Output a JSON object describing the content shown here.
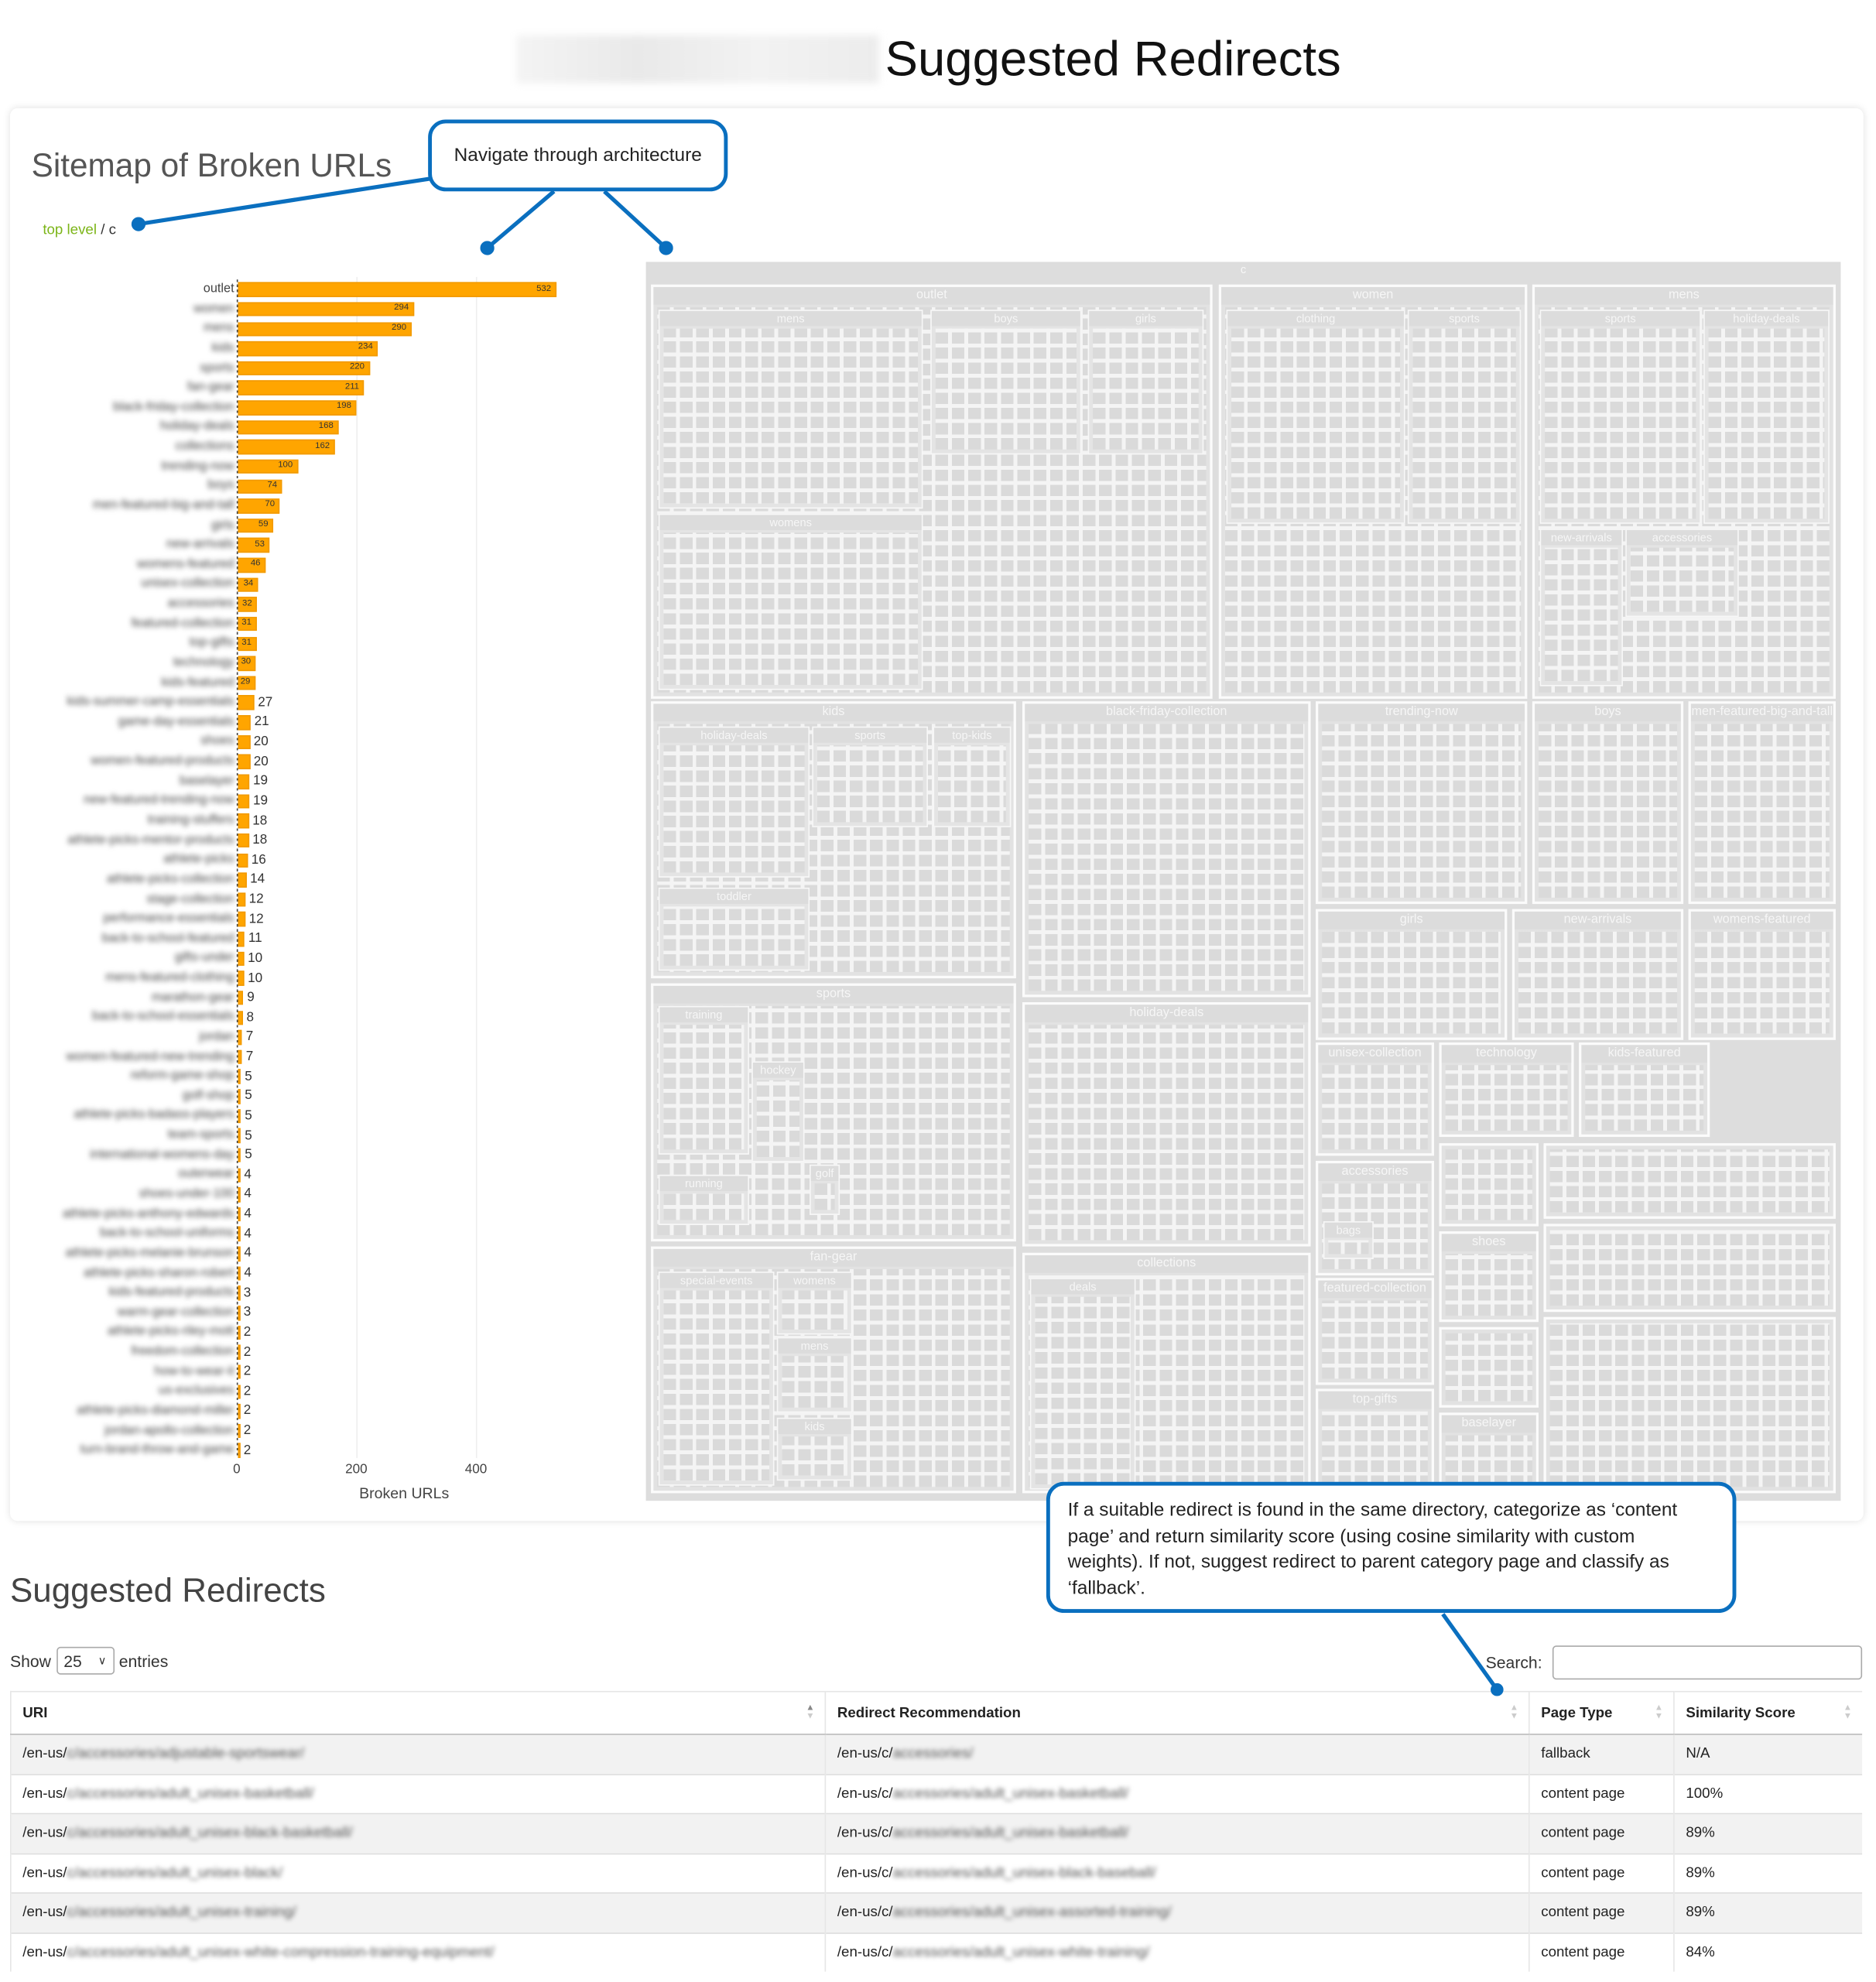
{
  "page_title": "Suggested Redirects",
  "sitemap": {
    "title": "Sitemap of Broken URLs",
    "breadcrumb": {
      "top": "top level",
      "sep": "/",
      "current": "c"
    }
  },
  "callouts": {
    "navigate": "Navigate through architecture",
    "redirect_logic": "If a suitable redirect is found in the same directory, categorize as ‘content page’ and return similarity score (using cosine similarity with custom weights). If not, suggest redirect to parent category page and classify as ‘fallback’."
  },
  "colors": {
    "bar": "#ffa500",
    "callout": "#0a6fbf",
    "breadcrumb_link": "#7cb518"
  },
  "chart_data": [
    {
      "type": "bar",
      "orientation": "horizontal",
      "xlabel": "Broken URLs",
      "xticks": [
        "0",
        "200",
        "400"
      ],
      "xlim": [
        0,
        560
      ],
      "categories": [
        "outlet",
        "women",
        "mens",
        "kids",
        "sports",
        "fan-gear",
        "black-friday-collection",
        "holiday-deals",
        "collections",
        "trending-now",
        "boys",
        "men-featured-big-and-tall",
        "girls",
        "new-arrivals",
        "womens-featured",
        "unisex-collection",
        "accessories",
        "featured-collection",
        "top-gifts",
        "technology",
        "kids-featured",
        "kids-summer-camp-essentials",
        "game-day-essentials",
        "shoes",
        "women-featured-products",
        "baselayer",
        "new-featured-trending-now",
        "training-stuffers",
        "athlete-picks-mentor-products",
        "athlete-picks",
        "athlete-picks-collection",
        "stage-collection",
        "performance-essentials",
        "back-to-school-featured",
        "gifts-under",
        "mens-featured-clothing",
        "marathon-gear",
        "back-to-school-essentials",
        "jordan",
        "women-featured-new-trending",
        "reform-game-shop",
        "golf-shop",
        "athlete-picks-badass-players",
        "team-sports",
        "international-womens-day",
        "outerwear",
        "shoes-under-100",
        "athlete-picks-anthony-edwards",
        "back-to-school-uniforms",
        "athlete-picks-melanie-brunson",
        "athlete-picks-sharon-robert",
        "kids-featured-products",
        "warm-gear-collection",
        "athlete-picks-riley-mott",
        "freedom-collection",
        "how-to-wear-it",
        "us-exclusives",
        "athlete-picks-diamond-miller",
        "jordan-apollo-collection",
        "turn-brand-throw-and-game"
      ],
      "values": [
        532,
        294,
        290,
        234,
        220,
        211,
        198,
        168,
        162,
        100,
        74,
        70,
        59,
        53,
        46,
        34,
        32,
        31,
        31,
        30,
        29,
        27,
        21,
        20,
        20,
        19,
        19,
        18,
        18,
        16,
        14,
        12,
        12,
        11,
        10,
        10,
        9,
        8,
        7,
        7,
        5,
        5,
        5,
        5,
        5,
        4,
        4,
        4,
        4,
        4,
        4,
        3,
        3,
        2,
        2,
        2,
        2,
        2,
        2,
        2
      ]
    },
    {
      "type": "treemap",
      "root": "c",
      "children": [
        {
          "name": "outlet",
          "children": [
            "mens",
            "boys",
            "girls",
            "womens"
          ]
        },
        {
          "name": "women",
          "children": [
            "clothing",
            "sports"
          ]
        },
        {
          "name": "mens",
          "children": [
            "sports",
            "holiday-deals",
            "new-arrivals",
            "accessories"
          ]
        },
        {
          "name": "kids",
          "children": [
            "holiday-deals",
            "sports",
            "top-kids",
            "toddler"
          ]
        },
        {
          "name": "black-friday-collection",
          "children": []
        },
        {
          "name": "trending-now",
          "children": []
        },
        {
          "name": "boys",
          "children": [
            "clothing"
          ]
        },
        {
          "name": "men-featured-big-and-tall",
          "children": []
        },
        {
          "name": "sports",
          "children": [
            "training",
            "hockey",
            "running",
            "golf"
          ]
        },
        {
          "name": "holiday-deals",
          "children": []
        },
        {
          "name": "girls",
          "children": [
            "clothing"
          ]
        },
        {
          "name": "new-arrivals",
          "children": []
        },
        {
          "name": "womens-featured",
          "children": []
        },
        {
          "name": "unisex-collection",
          "children": []
        },
        {
          "name": "technology",
          "children": []
        },
        {
          "name": "kids-featured",
          "children": []
        },
        {
          "name": "fan-gear",
          "children": [
            "special-events",
            "womens",
            "mens",
            "kids"
          ]
        },
        {
          "name": "collections",
          "children": [
            "deals"
          ]
        },
        {
          "name": "accessories",
          "children": [
            "bags"
          ]
        },
        {
          "name": "shoes",
          "children": []
        },
        {
          "name": "featured-collection",
          "children": []
        },
        {
          "name": "top-gifts",
          "children": []
        },
        {
          "name": "baselayer",
          "children": []
        }
      ]
    }
  ],
  "redirects": {
    "title": "Suggested Redirects",
    "show_label": "Show",
    "entries_label": "entries",
    "page_length": "25",
    "search_label": "Search:",
    "search_value": "",
    "columns": [
      "URI",
      "Redirect Recommendation",
      "Page Type",
      "Similarity Score"
    ],
    "rows": [
      {
        "uri_prefix": "/en-us/",
        "uri_rest": "c/accessories/adjustable-sportswear/",
        "rec_prefix": "/en-us/c/",
        "rec_rest": "accessories/",
        "type": "fallback",
        "score": "N/A"
      },
      {
        "uri_prefix": "/en-us/",
        "uri_rest": "c/accessories/adult_unisex-basketball/",
        "rec_prefix": "/en-us/c/",
        "rec_rest": "accessories/adult_unisex-basketball/",
        "type": "content page",
        "score": "100%"
      },
      {
        "uri_prefix": "/en-us/",
        "uri_rest": "c/accessories/adult_unisex-black-basketball/",
        "rec_prefix": "/en-us/c/",
        "rec_rest": "accessories/adult_unisex-basketball/",
        "type": "content page",
        "score": "89%"
      },
      {
        "uri_prefix": "/en-us/",
        "uri_rest": "c/accessories/adult_unisex-black/",
        "rec_prefix": "/en-us/c/",
        "rec_rest": "accessories/adult_unisex-black-baseball/",
        "type": "content page",
        "score": "89%"
      },
      {
        "uri_prefix": "/en-us/",
        "uri_rest": "c/accessories/adult_unisex-training/",
        "rec_prefix": "/en-us/c/",
        "rec_rest": "accessories/adult_unisex-assorted-training/",
        "type": "content page",
        "score": "89%"
      },
      {
        "uri_prefix": "/en-us/",
        "uri_rest": "c/accessories/adult_unisex-white-compression-training-equipment/",
        "rec_prefix": "/en-us/c/",
        "rec_rest": "accessories/adult_unisex-white-training/",
        "type": "content page",
        "score": "84%"
      }
    ]
  }
}
